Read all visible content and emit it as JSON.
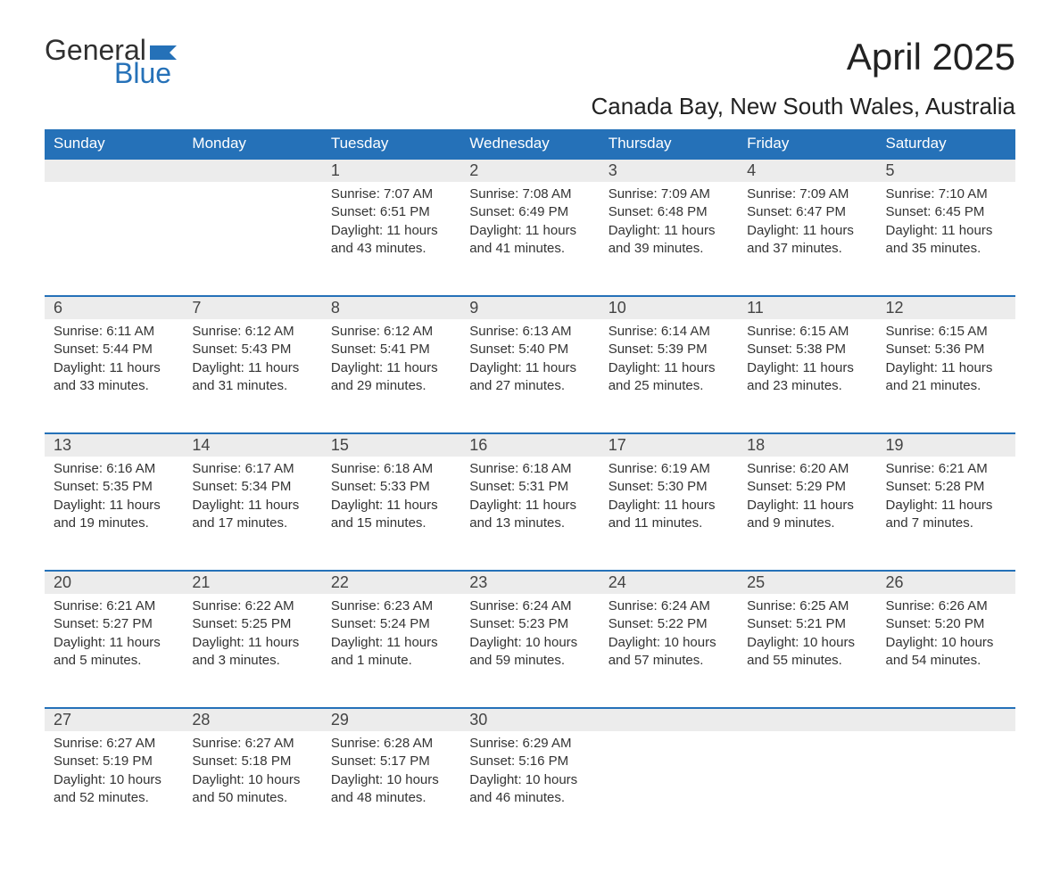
{
  "logo": {
    "text_general": "General",
    "text_blue": "Blue",
    "flag_color": "#2571b8",
    "text_color_dark": "#303030"
  },
  "title": "April 2025",
  "subtitle": "Canada Bay, New South Wales, Australia",
  "colors": {
    "header_bg": "#2571b8",
    "header_fg": "#ffffff",
    "daynum_bg": "#ececec",
    "week_border": "#2571b8",
    "body_text": "#333333",
    "page_bg": "#ffffff"
  },
  "weekdays": [
    "Sunday",
    "Monday",
    "Tuesday",
    "Wednesday",
    "Thursday",
    "Friday",
    "Saturday"
  ],
  "weeks": [
    [
      {
        "day": "",
        "lines": []
      },
      {
        "day": "",
        "lines": []
      },
      {
        "day": "1",
        "lines": [
          "Sunrise: 7:07 AM",
          "Sunset: 6:51 PM",
          "Daylight: 11 hours and 43 minutes."
        ]
      },
      {
        "day": "2",
        "lines": [
          "Sunrise: 7:08 AM",
          "Sunset: 6:49 PM",
          "Daylight: 11 hours and 41 minutes."
        ]
      },
      {
        "day": "3",
        "lines": [
          "Sunrise: 7:09 AM",
          "Sunset: 6:48 PM",
          "Daylight: 11 hours and 39 minutes."
        ]
      },
      {
        "day": "4",
        "lines": [
          "Sunrise: 7:09 AM",
          "Sunset: 6:47 PM",
          "Daylight: 11 hours and 37 minutes."
        ]
      },
      {
        "day": "5",
        "lines": [
          "Sunrise: 7:10 AM",
          "Sunset: 6:45 PM",
          "Daylight: 11 hours and 35 minutes."
        ]
      }
    ],
    [
      {
        "day": "6",
        "lines": [
          "Sunrise: 6:11 AM",
          "Sunset: 5:44 PM",
          "Daylight: 11 hours and 33 minutes."
        ]
      },
      {
        "day": "7",
        "lines": [
          "Sunrise: 6:12 AM",
          "Sunset: 5:43 PM",
          "Daylight: 11 hours and 31 minutes."
        ]
      },
      {
        "day": "8",
        "lines": [
          "Sunrise: 6:12 AM",
          "Sunset: 5:41 PM",
          "Daylight: 11 hours and 29 minutes."
        ]
      },
      {
        "day": "9",
        "lines": [
          "Sunrise: 6:13 AM",
          "Sunset: 5:40 PM",
          "Daylight: 11 hours and 27 minutes."
        ]
      },
      {
        "day": "10",
        "lines": [
          "Sunrise: 6:14 AM",
          "Sunset: 5:39 PM",
          "Daylight: 11 hours and 25 minutes."
        ]
      },
      {
        "day": "11",
        "lines": [
          "Sunrise: 6:15 AM",
          "Sunset: 5:38 PM",
          "Daylight: 11 hours and 23 minutes."
        ]
      },
      {
        "day": "12",
        "lines": [
          "Sunrise: 6:15 AM",
          "Sunset: 5:36 PM",
          "Daylight: 11 hours and 21 minutes."
        ]
      }
    ],
    [
      {
        "day": "13",
        "lines": [
          "Sunrise: 6:16 AM",
          "Sunset: 5:35 PM",
          "Daylight: 11 hours and 19 minutes."
        ]
      },
      {
        "day": "14",
        "lines": [
          "Sunrise: 6:17 AM",
          "Sunset: 5:34 PM",
          "Daylight: 11 hours and 17 minutes."
        ]
      },
      {
        "day": "15",
        "lines": [
          "Sunrise: 6:18 AM",
          "Sunset: 5:33 PM",
          "Daylight: 11 hours and 15 minutes."
        ]
      },
      {
        "day": "16",
        "lines": [
          "Sunrise: 6:18 AM",
          "Sunset: 5:31 PM",
          "Daylight: 11 hours and 13 minutes."
        ]
      },
      {
        "day": "17",
        "lines": [
          "Sunrise: 6:19 AM",
          "Sunset: 5:30 PM",
          "Daylight: 11 hours and 11 minutes."
        ]
      },
      {
        "day": "18",
        "lines": [
          "Sunrise: 6:20 AM",
          "Sunset: 5:29 PM",
          "Daylight: 11 hours and 9 minutes."
        ]
      },
      {
        "day": "19",
        "lines": [
          "Sunrise: 6:21 AM",
          "Sunset: 5:28 PM",
          "Daylight: 11 hours and 7 minutes."
        ]
      }
    ],
    [
      {
        "day": "20",
        "lines": [
          "Sunrise: 6:21 AM",
          "Sunset: 5:27 PM",
          "Daylight: 11 hours and 5 minutes."
        ]
      },
      {
        "day": "21",
        "lines": [
          "Sunrise: 6:22 AM",
          "Sunset: 5:25 PM",
          "Daylight: 11 hours and 3 minutes."
        ]
      },
      {
        "day": "22",
        "lines": [
          "Sunrise: 6:23 AM",
          "Sunset: 5:24 PM",
          "Daylight: 11 hours and 1 minute."
        ]
      },
      {
        "day": "23",
        "lines": [
          "Sunrise: 6:24 AM",
          "Sunset: 5:23 PM",
          "Daylight: 10 hours and 59 minutes."
        ]
      },
      {
        "day": "24",
        "lines": [
          "Sunrise: 6:24 AM",
          "Sunset: 5:22 PM",
          "Daylight: 10 hours and 57 minutes."
        ]
      },
      {
        "day": "25",
        "lines": [
          "Sunrise: 6:25 AM",
          "Sunset: 5:21 PM",
          "Daylight: 10 hours and 55 minutes."
        ]
      },
      {
        "day": "26",
        "lines": [
          "Sunrise: 6:26 AM",
          "Sunset: 5:20 PM",
          "Daylight: 10 hours and 54 minutes."
        ]
      }
    ],
    [
      {
        "day": "27",
        "lines": [
          "Sunrise: 6:27 AM",
          "Sunset: 5:19 PM",
          "Daylight: 10 hours and 52 minutes."
        ]
      },
      {
        "day": "28",
        "lines": [
          "Sunrise: 6:27 AM",
          "Sunset: 5:18 PM",
          "Daylight: 10 hours and 50 minutes."
        ]
      },
      {
        "day": "29",
        "lines": [
          "Sunrise: 6:28 AM",
          "Sunset: 5:17 PM",
          "Daylight: 10 hours and 48 minutes."
        ]
      },
      {
        "day": "30",
        "lines": [
          "Sunrise: 6:29 AM",
          "Sunset: 5:16 PM",
          "Daylight: 10 hours and 46 minutes."
        ]
      },
      {
        "day": "",
        "lines": []
      },
      {
        "day": "",
        "lines": []
      },
      {
        "day": "",
        "lines": []
      }
    ]
  ]
}
